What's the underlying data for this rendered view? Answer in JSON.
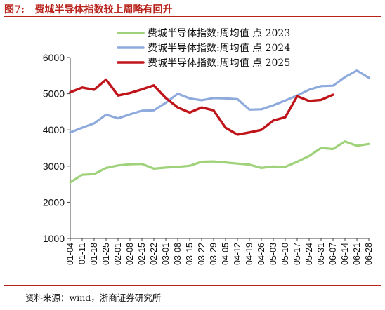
{
  "figure": {
    "label": "图7:",
    "title": "费城半导体指数较上周略有回升",
    "source": "资料来源：wind，浙商证券研究所",
    "accent": "#b8231b"
  },
  "chart_data": {
    "type": "line",
    "ylim": [
      1000,
      6000
    ],
    "yticks": [
      1000,
      2000,
      3000,
      4000,
      5000,
      6000
    ],
    "categories": [
      "01-04",
      "01-11",
      "01-18",
      "01-25",
      "02-01",
      "02-08",
      "02-15",
      "02-22",
      "03-01",
      "03-08",
      "03-15",
      "03-22",
      "03-29",
      "04-05",
      "04-12",
      "04-19",
      "04-26",
      "05-03",
      "05-10",
      "05-17",
      "05-24",
      "05-31",
      "06-07",
      "06-14",
      "06-21",
      "06-28"
    ],
    "legend_position": "top",
    "grid": false,
    "series": [
      {
        "name": "费城半导体指数:周均值  点  2023",
        "color": "#9fd27a",
        "x": [
          "01-04",
          "01-11",
          "01-18",
          "01-25",
          "02-01",
          "02-08",
          "02-15",
          "02-22",
          "03-01",
          "03-08",
          "03-15",
          "03-22",
          "03-29",
          "04-05",
          "04-12",
          "04-19",
          "04-26",
          "05-03",
          "05-10",
          "05-17",
          "05-24",
          "05-31",
          "06-07",
          "06-14",
          "06-21",
          "06-28"
        ],
        "values": [
          2550,
          2760,
          2780,
          2950,
          3020,
          3050,
          3060,
          2930,
          2960,
          2980,
          3010,
          3120,
          3130,
          3100,
          3070,
          3040,
          2950,
          2990,
          2980,
          3120,
          3280,
          3500,
          3470,
          3680,
          3560,
          3610
        ]
      },
      {
        "name": "费城半导体指数:周均值  点  2024",
        "color": "#8eaadd",
        "x": [
          "01-04",
          "01-11",
          "01-18",
          "01-25",
          "02-01",
          "02-08",
          "02-15",
          "02-22",
          "03-01",
          "03-08",
          "03-15",
          "03-22",
          "03-29",
          "04-05",
          "04-12",
          "04-19",
          "04-26",
          "05-03",
          "05-10",
          "05-17",
          "05-24",
          "05-31",
          "06-07",
          "06-14",
          "06-21",
          "06-28"
        ],
        "values": [
          3930,
          4060,
          4180,
          4420,
          4320,
          4430,
          4530,
          4540,
          4750,
          5000,
          4870,
          4820,
          4880,
          4870,
          4850,
          4560,
          4570,
          4680,
          4810,
          4950,
          5110,
          5210,
          5220,
          5460,
          5640,
          5440
        ]
      },
      {
        "name": "费城半导体指数:周均值  点  2025",
        "color": "#c0141b",
        "x": [
          "01-04",
          "01-11",
          "01-18",
          "01-25",
          "02-01",
          "02-08",
          "02-15",
          "02-22",
          "03-01",
          "03-08",
          "03-15",
          "03-22",
          "03-29",
          "04-05",
          "04-12",
          "04-19",
          "04-26",
          "05-03",
          "05-10",
          "05-17",
          "05-24",
          "05-31",
          "06-07"
        ],
        "values": [
          5040,
          5170,
          5110,
          5390,
          4950,
          5020,
          5120,
          5230,
          4880,
          4620,
          4480,
          4620,
          4540,
          4060,
          3870,
          3930,
          4000,
          4260,
          4350,
          4930,
          4800,
          4830,
          4970
        ]
      }
    ]
  }
}
